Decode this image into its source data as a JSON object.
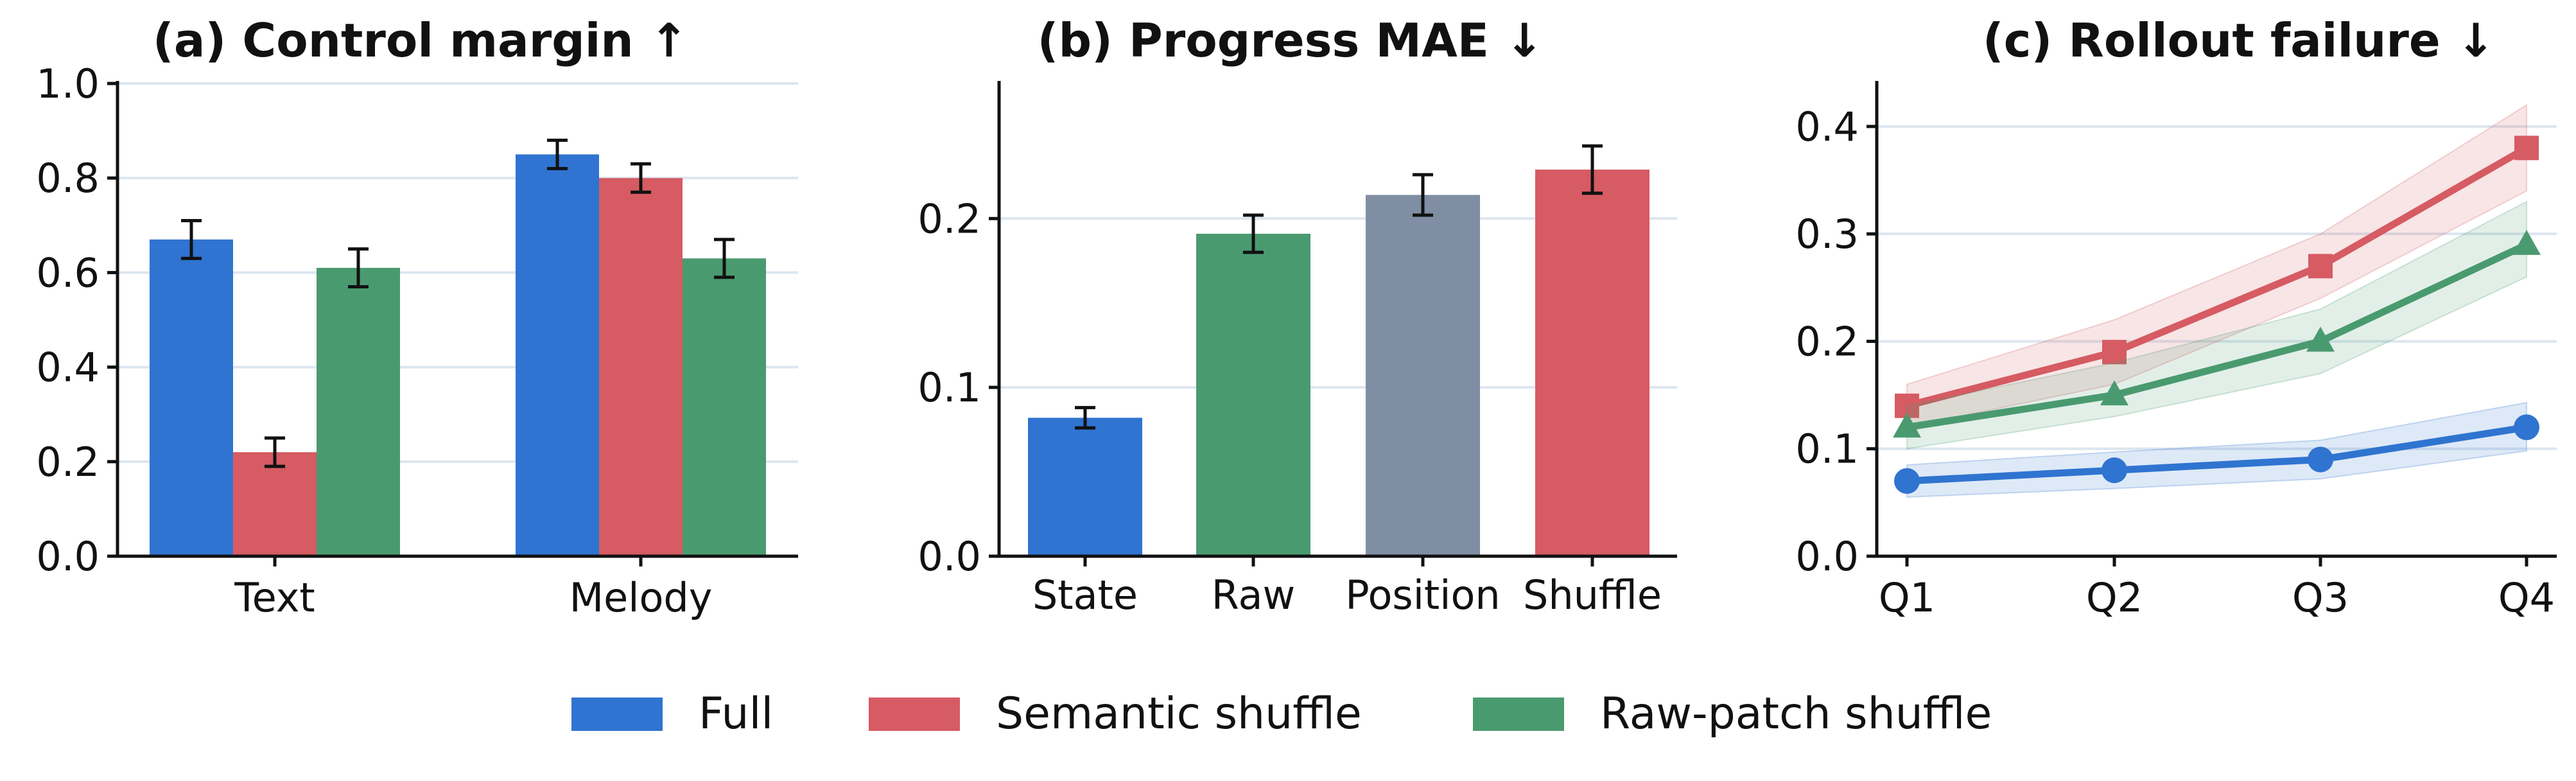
{
  "colors": {
    "full": "#2f74d0",
    "semantic": "#d65b63",
    "rawpatch": "#4a9a70",
    "position": "#7f8ea3",
    "grid": "#dce6f0",
    "axis": "#111111",
    "errorbar": "#111111"
  },
  "chart_data": [
    {
      "type": "bar",
      "title": "(a) Control margin ↑",
      "categories": [
        "Text",
        "Melody"
      ],
      "series": [
        {
          "name": "Full",
          "color_key": "full",
          "values": [
            0.67,
            0.85
          ],
          "errors": [
            0.04,
            0.03
          ]
        },
        {
          "name": "Semantic shuffle",
          "color_key": "semantic",
          "values": [
            0.22,
            0.8
          ],
          "errors": [
            0.03,
            0.03
          ]
        },
        {
          "name": "Raw-patch shuffle",
          "color_key": "rawpatch",
          "values": [
            0.61,
            0.63
          ],
          "errors": [
            0.04,
            0.04
          ]
        }
      ],
      "ylim": [
        0,
        1.0
      ],
      "yticks": [
        "0.0",
        "0.2",
        "0.4",
        "0.6",
        "0.8",
        "1.0"
      ],
      "ytick_values": [
        0,
        0.2,
        0.4,
        0.6,
        0.8,
        1.0
      ],
      "grid": "horizontal"
    },
    {
      "type": "bar",
      "title": "(b) Progress MAE ↓",
      "categories": [
        "State",
        "Raw",
        "Position",
        "Shuffle"
      ],
      "values": [
        0.082,
        0.191,
        0.214,
        0.229
      ],
      "errors": [
        0.006,
        0.011,
        0.012,
        0.014
      ],
      "bar_color_keys": [
        "full",
        "rawpatch",
        "position",
        "semantic"
      ],
      "ylim": [
        0,
        0.28
      ],
      "yticks": [
        "0.0",
        "0.1",
        "0.2"
      ],
      "ytick_values": [
        0,
        0.1,
        0.2
      ],
      "grid": "horizontal"
    },
    {
      "type": "line",
      "title": "(c) Rollout failure ↓",
      "x": [
        "Q1",
        "Q2",
        "Q3",
        "Q4"
      ],
      "series": [
        {
          "name": "Semantic shuffle",
          "color_key": "semantic",
          "marker": "square",
          "values": [
            0.14,
            0.19,
            0.27,
            0.38
          ],
          "lower": [
            0.12,
            0.16,
            0.24,
            0.34
          ],
          "upper": [
            0.16,
            0.22,
            0.3,
            0.42
          ]
        },
        {
          "name": "Raw-patch shuffle",
          "color_key": "rawpatch",
          "marker": "triangle",
          "values": [
            0.12,
            0.15,
            0.2,
            0.29
          ],
          "lower": [
            0.1,
            0.13,
            0.17,
            0.26
          ],
          "upper": [
            0.14,
            0.18,
            0.23,
            0.33
          ]
        },
        {
          "name": "Full",
          "color_key": "full",
          "marker": "circle",
          "values": [
            0.07,
            0.08,
            0.09,
            0.12
          ],
          "lower": [
            0.055,
            0.063,
            0.072,
            0.098
          ],
          "upper": [
            0.085,
            0.097,
            0.108,
            0.143
          ]
        }
      ],
      "ylim": [
        0,
        0.44
      ],
      "yticks": [
        "0.0",
        "0.1",
        "0.2",
        "0.3",
        "0.4"
      ],
      "ytick_values": [
        0,
        0.1,
        0.2,
        0.3,
        0.4
      ],
      "grid": "horizontal"
    }
  ],
  "legend": {
    "placement": "bottom-center",
    "items": [
      {
        "label": "Full",
        "color_key": "full"
      },
      {
        "label": "Semantic shuffle",
        "color_key": "semantic"
      },
      {
        "label": "Raw-patch shuffle",
        "color_key": "rawpatch"
      }
    ]
  }
}
